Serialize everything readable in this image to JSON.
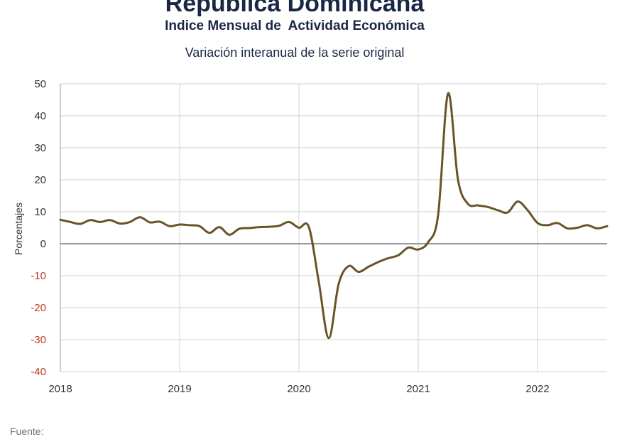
{
  "header": {
    "title": "República Dominicana",
    "subtitle": "Indice Mensual de  Actividad Económica",
    "subtitle2": "Variación interanual de la serie original"
  },
  "footer": {
    "source_label": "Fuente:"
  },
  "colors": {
    "line": "#6b5329",
    "positive_tick": "#333333",
    "negative_tick": "#c0392b",
    "grid": "#d0d0d0",
    "zero_line": "#777777"
  },
  "chart_data": {
    "type": "line",
    "title": "República Dominicana",
    "subtitle": "Indice Mensual de  Actividad Económica — Variación interanual de la serie original",
    "xlabel": "",
    "ylabel": "Porcentajes",
    "xlim": [
      "2018-01",
      "2022-08"
    ],
    "ylim": [
      -40,
      50
    ],
    "yticks": [
      50,
      40,
      30,
      20,
      10,
      0,
      -10,
      -20,
      -30,
      -40
    ],
    "xticks": [
      "2018",
      "2019",
      "2020",
      "2021",
      "2022"
    ],
    "grid": true,
    "legend": "none",
    "series": [
      {
        "x": [
          "2018-01",
          "2018-02",
          "2018-03",
          "2018-04",
          "2018-05",
          "2018-06",
          "2018-07",
          "2018-08",
          "2018-09",
          "2018-10",
          "2018-11",
          "2018-12",
          "2019-01",
          "2019-02",
          "2019-03",
          "2019-04",
          "2019-05",
          "2019-06",
          "2019-07",
          "2019-08",
          "2019-09",
          "2019-10",
          "2019-11",
          "2019-12",
          "2020-01",
          "2020-02",
          "2020-03",
          "2020-04",
          "2020-05",
          "2020-06",
          "2020-07",
          "2020-08",
          "2020-09",
          "2020-10",
          "2020-11",
          "2020-12",
          "2021-01",
          "2021-02",
          "2021-03",
          "2021-04",
          "2021-05",
          "2021-06",
          "2021-07",
          "2021-08",
          "2021-09",
          "2021-10",
          "2021-11",
          "2021-12",
          "2022-01",
          "2022-02",
          "2022-03",
          "2022-04",
          "2022-05",
          "2022-06",
          "2022-07",
          "2022-08"
        ],
        "values": [
          7.5,
          6.8,
          6.2,
          7.4,
          6.8,
          7.4,
          6.3,
          6.8,
          8.3,
          6.7,
          6.9,
          5.5,
          6.0,
          5.8,
          5.5,
          3.4,
          5.2,
          2.8,
          4.7,
          4.9,
          5.2,
          5.3,
          5.6,
          6.8,
          5.0,
          5.2,
          -12.0,
          -29.5,
          -12.5,
          -7.0,
          -8.8,
          -7.2,
          -5.7,
          -4.5,
          -3.6,
          -1.2,
          -1.8,
          0.5,
          9.0,
          47.0,
          20.0,
          12.5,
          12.0,
          11.5,
          10.5,
          9.8,
          13.2,
          10.5,
          6.5,
          5.8,
          6.5,
          4.8,
          5.0,
          5.8,
          4.8,
          5.5
        ]
      }
    ]
  }
}
